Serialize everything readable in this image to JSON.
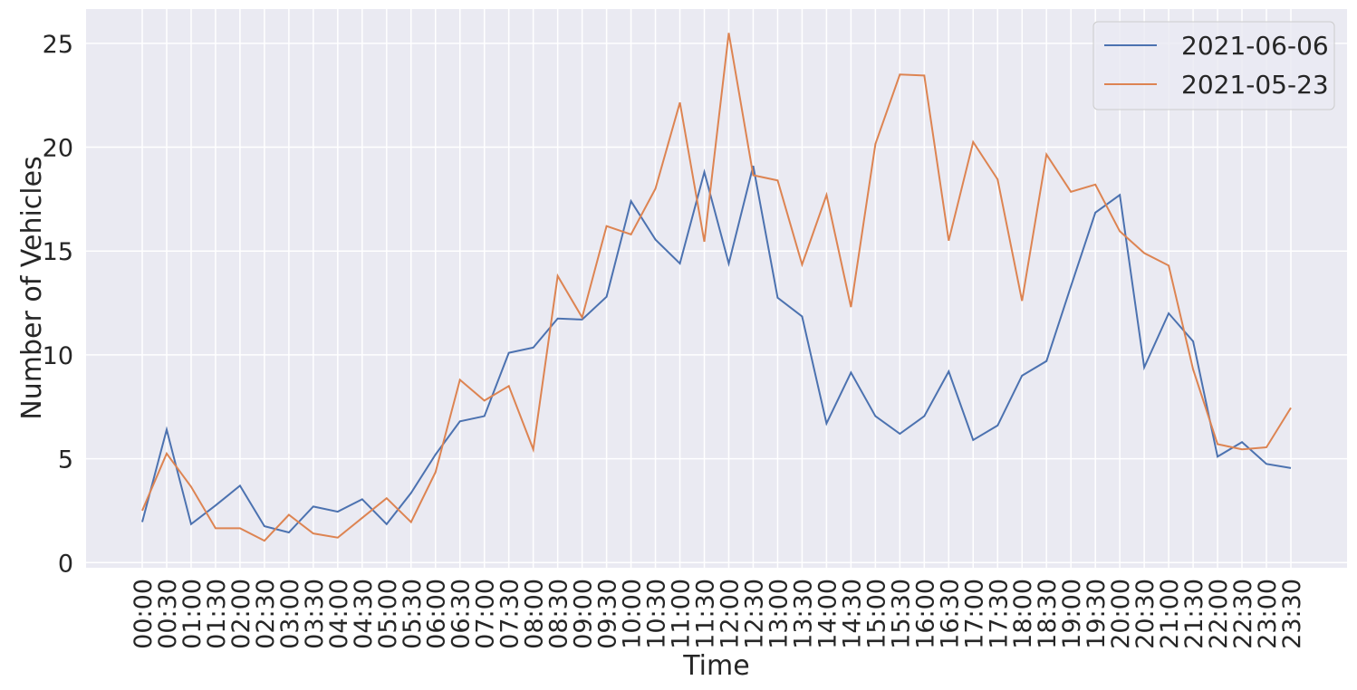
{
  "chart_data": {
    "type": "line",
    "x_label": "Time",
    "y_label": "Number of Vehicles",
    "categories": [
      "00:00",
      "00:30",
      "01:00",
      "01:30",
      "02:00",
      "02:30",
      "03:00",
      "03:30",
      "04:00",
      "04:30",
      "05:00",
      "05:30",
      "06:00",
      "06:30",
      "07:00",
      "07:30",
      "08:00",
      "08:30",
      "09:00",
      "09:30",
      "10:00",
      "10:30",
      "11:00",
      "11:30",
      "12:00",
      "12:30",
      "13:00",
      "13:30",
      "14:00",
      "14:30",
      "15:00",
      "15:30",
      "16:00",
      "16:30",
      "17:00",
      "17:30",
      "18:00",
      "18:30",
      "19:00",
      "19:30",
      "20:00",
      "20:30",
      "21:00",
      "21:30",
      "22:00",
      "22:30",
      "23:00",
      "23:30"
    ],
    "series": [
      {
        "name": "2021-06-06",
        "color": "#4c72b0",
        "values": [
          1.95,
          6.4,
          1.85,
          2.75,
          3.7,
          1.75,
          1.45,
          2.7,
          2.45,
          3.05,
          1.85,
          3.35,
          5.2,
          6.8,
          7.05,
          10.1,
          10.35,
          11.75,
          11.7,
          12.8,
          17.4,
          15.55,
          14.4,
          18.8,
          14.4,
          19.1,
          12.75,
          11.85,
          6.7,
          9.15,
          7.05,
          6.2,
          7.05,
          9.2,
          5.9,
          6.6,
          9.0,
          9.7,
          13.3,
          16.85,
          17.7,
          9.4,
          12.0,
          10.65,
          5.1,
          5.8,
          4.75,
          4.55
        ]
      },
      {
        "name": "2021-05-23",
        "color": "#dd8452",
        "values": [
          2.5,
          5.25,
          3.65,
          1.65,
          1.65,
          1.05,
          2.3,
          1.4,
          1.2,
          2.15,
          3.1,
          1.95,
          4.35,
          8.8,
          7.8,
          8.5,
          5.45,
          13.8,
          11.8,
          16.2,
          15.8,
          18.0,
          22.15,
          15.45,
          25.5,
          18.65,
          18.4,
          14.35,
          17.7,
          12.3,
          20.15,
          23.5,
          23.45,
          15.5,
          20.25,
          18.45,
          12.6,
          19.65,
          17.85,
          18.2,
          15.95,
          14.9,
          14.3,
          9.3,
          5.7,
          5.45,
          5.55,
          7.45
        ]
      }
    ],
    "ylim": [
      -0.25,
      26.65
    ],
    "yticks": [
      0,
      5,
      10,
      15,
      20,
      25
    ],
    "grid": true,
    "legend_loc": "upper right",
    "background": "#eaeaf2"
  }
}
